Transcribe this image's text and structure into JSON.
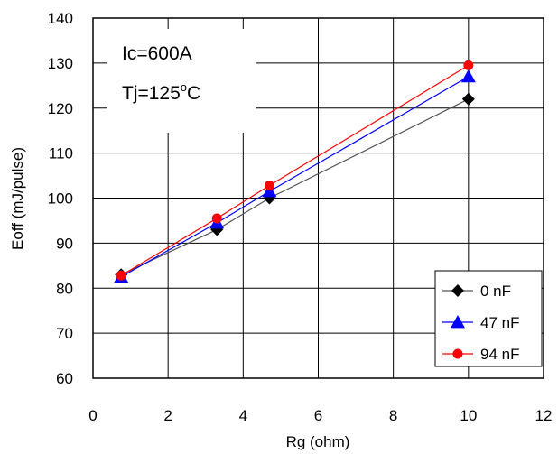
{
  "chart_data": {
    "type": "line",
    "xlabel": "Rg (ohm)",
    "ylabel": "Eoff (mJ/pulse)",
    "xlim": [
      0,
      12
    ],
    "ylim": [
      60,
      140
    ],
    "x_ticks": [
      "0",
      "2",
      "4",
      "6",
      "8",
      "10",
      "12"
    ],
    "y_ticks": [
      "60",
      "70",
      "80",
      "90",
      "100",
      "110",
      "120",
      "130",
      "140"
    ],
    "grid": true,
    "legend_position": "bottom-right",
    "annotations": {
      "ic": "Ic=600A",
      "tj_prefix": "Tj=125",
      "tj_sup": "o",
      "tj_suffix": "C"
    },
    "series": [
      {
        "name": "0 nF",
        "color": "#000000",
        "line_color": "#555555",
        "marker": "diamond",
        "x": [
          0.75,
          3.3,
          4.7,
          10
        ],
        "y": [
          83,
          93,
          100,
          122
        ]
      },
      {
        "name": "47 nF",
        "color": "#0000ff",
        "line_color": "#0000ff",
        "marker": "triangle",
        "x": [
          0.75,
          3.3,
          4.7,
          10
        ],
        "y": [
          82.5,
          94.5,
          101.5,
          127
        ]
      },
      {
        "name": "94 nF",
        "color": "#ff0000",
        "line_color": "#ff0000",
        "marker": "circle",
        "x": [
          0.75,
          3.3,
          4.7,
          10
        ],
        "y": [
          82.8,
          95.5,
          102.8,
          129.5
        ]
      }
    ]
  }
}
